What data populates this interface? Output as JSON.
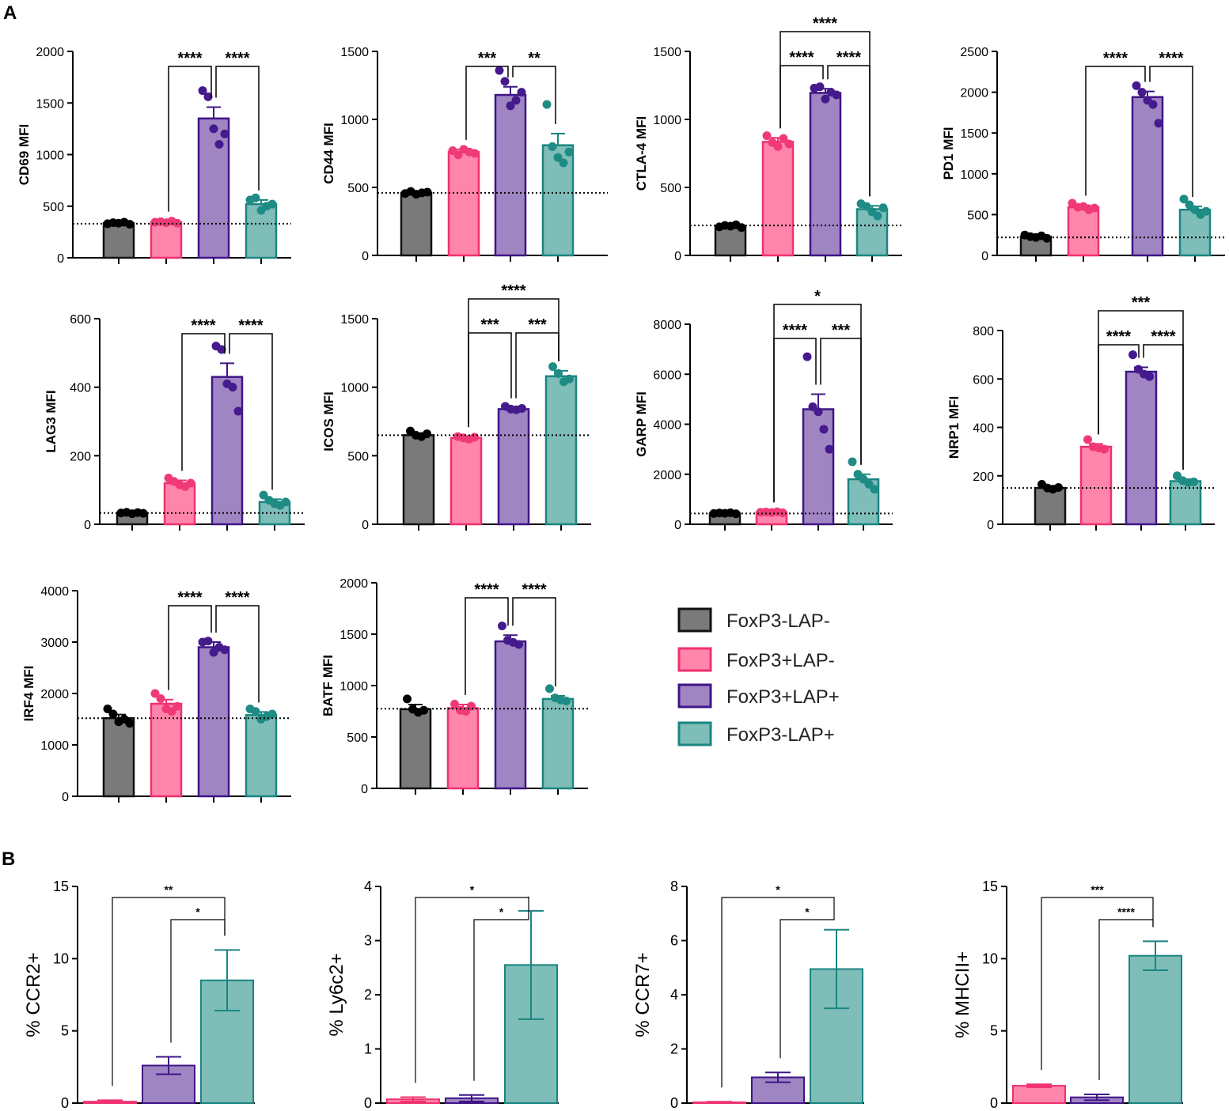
{
  "panels": {
    "a": "A",
    "b": "B"
  },
  "colors": {
    "grey": "#7a7a7a",
    "grey_edge": "#111111",
    "pink": "#ff85ab",
    "pink_edge": "#f0306f",
    "purple": "#a085c3",
    "purple_edge": "#3f1587",
    "teal": "#7fbdb9",
    "teal_edge": "#1a8580",
    "dot_grey": "#000000",
    "dot_pink": "#f03a78",
    "dot_purple": "#451a8c",
    "dot_teal": "#1e8c84"
  },
  "legend": [
    {
      "label": "FoxP3-LAP-",
      "color": "grey"
    },
    {
      "label": "FoxP3+LAP-",
      "color": "pink"
    },
    {
      "label": "FoxP3+LAP+",
      "color": "purple"
    },
    {
      "label": "FoxP3-LAP+",
      "color": "teal"
    }
  ],
  "chart_data": [
    {
      "type": "bar",
      "panel": "A",
      "ylabel": "CD69 MFI",
      "ylim": [
        0,
        2000
      ],
      "yticks": [
        0,
        500,
        1000,
        1500,
        2000
      ],
      "baseline": 330,
      "groups": [
        "FoxP3-LAP-",
        "FoxP3+LAP-",
        "FoxP3+LAP+",
        "FoxP3-LAP+"
      ],
      "values": [
        335,
        345,
        1350,
        520
      ],
      "errors": [
        10,
        10,
        110,
        40
      ],
      "points": [
        [
          330,
          340,
          335,
          345,
          325
        ],
        [
          345,
          350,
          340,
          355,
          335
        ],
        [
          1620,
          1560,
          1250,
          1100,
          1200
        ],
        [
          560,
          580,
          460,
          500,
          520
        ]
      ],
      "comparisons": [
        {
          "from": 1,
          "to": 2,
          "label": "****",
          "level": 0
        },
        {
          "from": 2,
          "to": 3,
          "label": "****",
          "level": 0
        }
      ]
    },
    {
      "type": "bar",
      "panel": "A",
      "ylabel": "CD44 MFI",
      "ylim": [
        0,
        1500
      ],
      "yticks": [
        0,
        500,
        1000,
        1500
      ],
      "baseline": 460,
      "groups": [
        "FoxP3-LAP-",
        "FoxP3+LAP-",
        "FoxP3+LAP+",
        "FoxP3-LAP+"
      ],
      "values": [
        460,
        760,
        1180,
        810
      ],
      "errors": [
        8,
        20,
        60,
        85
      ],
      "points": [
        [
          455,
          470,
          450,
          460,
          465
        ],
        [
          770,
          740,
          780,
          760,
          750
        ],
        [
          1360,
          1280,
          1100,
          1140,
          1200
        ],
        [
          1110,
          800,
          720,
          680,
          760
        ]
      ],
      "comparisons": [
        {
          "from": 1,
          "to": 2,
          "label": "***",
          "level": 0
        },
        {
          "from": 2,
          "to": 3,
          "label": "**",
          "level": 0
        }
      ]
    },
    {
      "type": "bar",
      "panel": "A",
      "ylabel": "CTLA-4 MFI",
      "ylim": [
        0,
        1500
      ],
      "yticks": [
        0,
        500,
        1000,
        1500
      ],
      "baseline": 220,
      "groups": [
        "FoxP3-LAP-",
        "FoxP3+LAP-",
        "FoxP3+LAP+",
        "FoxP3-LAP+"
      ],
      "values": [
        215,
        835,
        1195,
        340
      ],
      "errors": [
        8,
        30,
        30,
        25
      ],
      "points": [
        [
          210,
          220,
          215,
          225,
          205
        ],
        [
          880,
          830,
          800,
          860,
          820
        ],
        [
          1230,
          1240,
          1150,
          1200,
          1180
        ],
        [
          380,
          360,
          320,
          290,
          350
        ]
      ],
      "comparisons": [
        {
          "from": 1,
          "to": 2,
          "label": "****",
          "level": 0
        },
        {
          "from": 2,
          "to": 3,
          "label": "****",
          "level": 0
        },
        {
          "from": 1,
          "to": 3,
          "label": "****",
          "level": 1
        }
      ]
    },
    {
      "type": "bar",
      "panel": "A",
      "ylabel": "PD1 MFI",
      "ylim": [
        0,
        2500
      ],
      "yticks": [
        0,
        500,
        1000,
        1500,
        2000,
        2500
      ],
      "baseline": 220,
      "groups": [
        "FoxP3-LAP-",
        "FoxP3+LAP-",
        "FoxP3+LAP+",
        "FoxP3-LAP+"
      ],
      "values": [
        230,
        590,
        1940,
        560
      ],
      "errors": [
        10,
        25,
        70,
        40
      ],
      "points": [
        [
          250,
          230,
          220,
          240,
          210
        ],
        [
          640,
          590,
          600,
          560,
          580
        ],
        [
          2080,
          2000,
          1900,
          1850,
          1620
        ],
        [
          690,
          620,
          560,
          500,
          540
        ]
      ],
      "comparisons": [
        {
          "from": 1,
          "to": 2,
          "label": "****",
          "level": 0
        },
        {
          "from": 2,
          "to": 3,
          "label": "****",
          "level": 0
        }
      ]
    },
    {
      "type": "bar",
      "panel": "A",
      "ylabel": "LAG3 MFI",
      "ylim": [
        0,
        600
      ],
      "yticks": [
        0,
        200,
        400,
        600
      ],
      "baseline": 33,
      "groups": [
        "FoxP3-LAP-",
        "FoxP3+LAP-",
        "FoxP3+LAP+",
        "FoxP3-LAP+"
      ],
      "values": [
        33,
        120,
        430,
        65
      ],
      "errors": [
        3,
        8,
        40,
        8
      ],
      "points": [
        [
          33,
          35,
          31,
          34,
          32
        ],
        [
          135,
          125,
          115,
          110,
          120
        ],
        [
          520,
          510,
          410,
          400,
          330
        ],
        [
          85,
          70,
          60,
          55,
          65
        ]
      ],
      "comparisons": [
        {
          "from": 1,
          "to": 2,
          "label": "****",
          "level": 0
        },
        {
          "from": 2,
          "to": 3,
          "label": "****",
          "level": 0
        }
      ]
    },
    {
      "type": "bar",
      "panel": "A",
      "ylabel": "ICOS MFI",
      "ylim": [
        0,
        1500
      ],
      "yticks": [
        0,
        500,
        1000,
        1500
      ],
      "baseline": 650,
      "groups": [
        "FoxP3-LAP-",
        "FoxP3+LAP-",
        "FoxP3+LAP+",
        "FoxP3-LAP+"
      ],
      "values": [
        650,
        630,
        840,
        1080
      ],
      "errors": [
        15,
        10,
        10,
        40
      ],
      "points": [
        [
          680,
          650,
          640,
          660
        ],
        [
          640,
          630,
          620,
          635
        ],
        [
          860,
          840,
          835,
          845
        ],
        [
          1150,
          1100,
          1040,
          1060
        ]
      ],
      "comparisons": [
        {
          "from": 1,
          "to": 2,
          "label": "***",
          "level": 0
        },
        {
          "from": 2,
          "to": 3,
          "label": "***",
          "level": 0
        },
        {
          "from": 1,
          "to": 3,
          "label": "****",
          "level": 1
        }
      ]
    },
    {
      "type": "bar",
      "panel": "A",
      "ylabel": "GARP MFI",
      "ylim": [
        0,
        8000
      ],
      "yticks": [
        0,
        2000,
        4000,
        6000,
        8000
      ],
      "baseline": 430,
      "groups": [
        "FoxP3-LAP-",
        "FoxP3+LAP-",
        "FoxP3+LAP+",
        "FoxP3-LAP+"
      ],
      "values": [
        440,
        480,
        4600,
        1800
      ],
      "errors": [
        20,
        20,
        600,
        200
      ],
      "points": [
        [
          430,
          450,
          440,
          460,
          420
        ],
        [
          480,
          490,
          470,
          500,
          460
        ],
        [
          6700,
          4700,
          4500,
          3800,
          3000
        ],
        [
          2500,
          2000,
          1800,
          1600,
          1400
        ]
      ],
      "comparisons": [
        {
          "from": 1,
          "to": 2,
          "label": "****",
          "level": 0
        },
        {
          "from": 2,
          "to": 3,
          "label": "***",
          "level": 0
        },
        {
          "from": 1,
          "to": 3,
          "label": "*",
          "level": 1
        }
      ]
    },
    {
      "type": "bar",
      "panel": "A",
      "ylabel": "NRP1 MFI",
      "ylim": [
        0,
        800
      ],
      "yticks": [
        0,
        200,
        400,
        600,
        800
      ],
      "baseline": 150,
      "groups": [
        "FoxP3-LAP-",
        "FoxP3+LAP-",
        "FoxP3+LAP+",
        "FoxP3-LAP+"
      ],
      "values": [
        150,
        320,
        630,
        178
      ],
      "errors": [
        5,
        12,
        18,
        8
      ],
      "points": [
        [
          165,
          150,
          145,
          152
        ],
        [
          350,
          320,
          315,
          310
        ],
        [
          700,
          640,
          620,
          610
        ],
        [
          200,
          180,
          172,
          175
        ]
      ],
      "comparisons": [
        {
          "from": 1,
          "to": 2,
          "label": "****",
          "level": 0
        },
        {
          "from": 2,
          "to": 3,
          "label": "****",
          "level": 0
        },
        {
          "from": 1,
          "to": 3,
          "label": "***",
          "level": 1
        }
      ]
    },
    {
      "type": "bar",
      "panel": "A",
      "ylabel": "IRF4 MFI",
      "ylim": [
        0,
        4000
      ],
      "yticks": [
        0,
        1000,
        2000,
        3000,
        4000
      ],
      "baseline": 1520,
      "groups": [
        "FoxP3-LAP-",
        "FoxP3+LAP-",
        "FoxP3+LAP+",
        "FoxP3-LAP+"
      ],
      "values": [
        1520,
        1800,
        2900,
        1580
      ],
      "errors": [
        70,
        80,
        100,
        60
      ],
      "points": [
        [
          1700,
          1600,
          1450,
          1500,
          1420
        ],
        [
          2000,
          1900,
          1700,
          1650,
          1750
        ],
        [
          3000,
          3020,
          2800,
          2900,
          2850
        ],
        [
          1700,
          1650,
          1500,
          1550,
          1600
        ]
      ],
      "comparisons": [
        {
          "from": 1,
          "to": 2,
          "label": "****",
          "level": 0
        },
        {
          "from": 2,
          "to": 3,
          "label": "****",
          "level": 0
        }
      ]
    },
    {
      "type": "bar",
      "panel": "A",
      "ylabel": "BATF MFI",
      "ylim": [
        0,
        2000
      ],
      "yticks": [
        0,
        500,
        1000,
        1500,
        2000
      ],
      "baseline": 775,
      "groups": [
        "FoxP3-LAP-",
        "FoxP3+LAP-",
        "FoxP3+LAP+",
        "FoxP3-LAP+"
      ],
      "values": [
        770,
        780,
        1430,
        870
      ],
      "errors": [
        45,
        35,
        60,
        30
      ],
      "points": [
        [
          870,
          770,
          740,
          760
        ],
        [
          820,
          760,
          750,
          800
        ],
        [
          1580,
          1440,
          1420,
          1400
        ],
        [
          970,
          880,
          860,
          850
        ]
      ],
      "comparisons": [
        {
          "from": 1,
          "to": 2,
          "label": "****",
          "level": 0
        },
        {
          "from": 2,
          "to": 3,
          "label": "****",
          "level": 0
        }
      ]
    },
    {
      "type": "bar",
      "panel": "B",
      "ylabel": "% CCR2+",
      "ylim": [
        0,
        15
      ],
      "yticks": [
        0,
        5,
        10,
        15
      ],
      "groups": [
        "FoxP3+LAP-",
        "FoxP3+LAP+",
        "FoxP3-LAP+"
      ],
      "values": [
        0.1,
        2.6,
        8.5
      ],
      "errors": [
        0.1,
        0.6,
        2.1
      ],
      "comparisons": [
        {
          "from": 1,
          "to": 2,
          "label": "*",
          "level": 0
        },
        {
          "from": 0,
          "to": 2,
          "label": "**",
          "level": 1
        }
      ]
    },
    {
      "type": "bar",
      "panel": "B",
      "ylabel": "% Ly6c2+",
      "ylim": [
        0,
        4
      ],
      "yticks": [
        0,
        1,
        2,
        3,
        4
      ],
      "groups": [
        "FoxP3+LAP-",
        "FoxP3+LAP+",
        "FoxP3-LAP+"
      ],
      "values": [
        0.07,
        0.09,
        2.55
      ],
      "errors": [
        0.04,
        0.06,
        1.0
      ],
      "comparisons": [
        {
          "from": 1,
          "to": 2,
          "label": "*",
          "level": 0
        },
        {
          "from": 0,
          "to": 2,
          "label": "*",
          "level": 1
        }
      ]
    },
    {
      "type": "bar",
      "panel": "B",
      "ylabel": "% CCR7+",
      "ylim": [
        0,
        8
      ],
      "yticks": [
        0,
        2,
        4,
        6,
        8
      ],
      "groups": [
        "FoxP3+LAP-",
        "FoxP3+LAP+",
        "FoxP3-LAP+"
      ],
      "values": [
        0.03,
        0.95,
        4.95
      ],
      "errors": [
        0.02,
        0.18,
        1.45
      ],
      "comparisons": [
        {
          "from": 1,
          "to": 2,
          "label": "*",
          "level": 0
        },
        {
          "from": 0,
          "to": 2,
          "label": "*",
          "level": 1
        }
      ]
    },
    {
      "type": "bar",
      "panel": "B",
      "ylabel": "% MHCII+",
      "ylim": [
        0,
        15
      ],
      "yticks": [
        0,
        5,
        10,
        15
      ],
      "groups": [
        "FoxP3+LAP-",
        "FoxP3+LAP+",
        "FoxP3-LAP+"
      ],
      "values": [
        1.2,
        0.4,
        10.2
      ],
      "errors": [
        0.1,
        0.2,
        1.0
      ],
      "comparisons": [
        {
          "from": 1,
          "to": 2,
          "label": "****",
          "level": 0
        },
        {
          "from": 0,
          "to": 2,
          "label": "***",
          "level": 1
        }
      ]
    }
  ]
}
